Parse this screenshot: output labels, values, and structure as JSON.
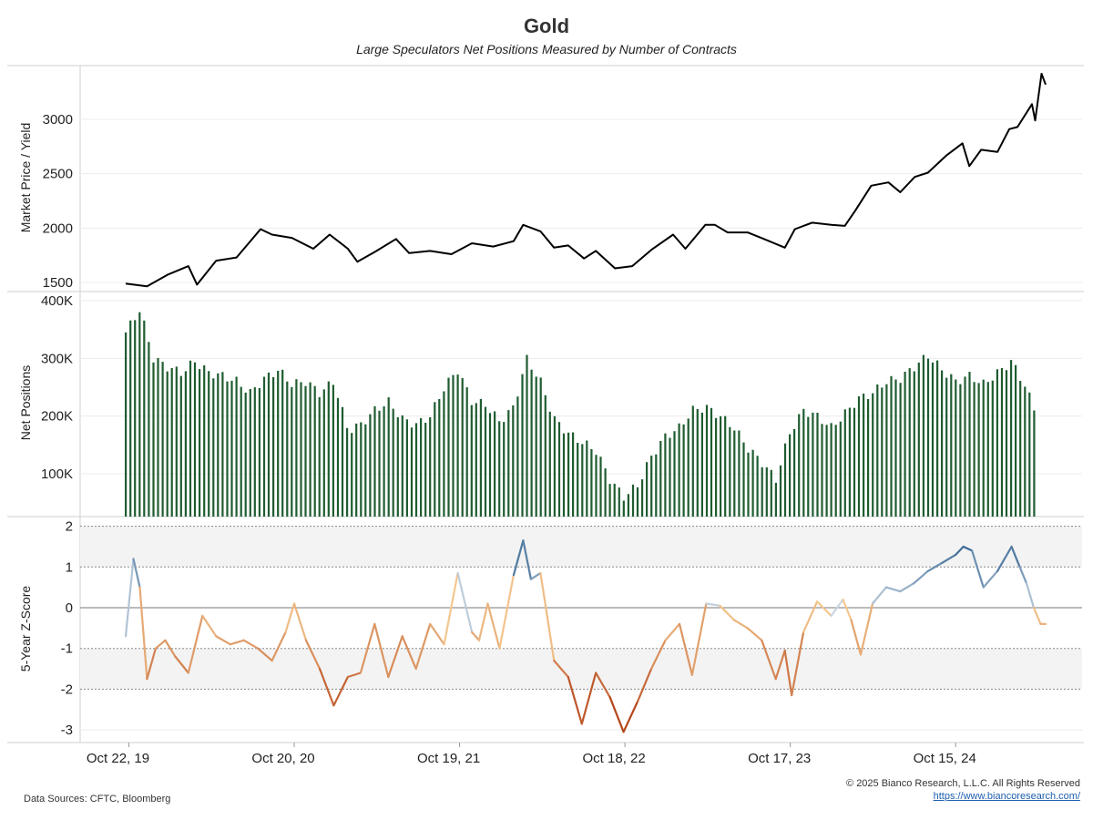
{
  "header": {
    "title": "Gold",
    "subtitle": "Large Speculators Net Positions Measured by Number of Contracts"
  },
  "footer": {
    "sources": "Data Sources: CFTC, Bloomberg",
    "copyright": "© 2025 Bianco Research, L.L.C. All Rights Reserved",
    "website": "https://www.biancoresearch.com/"
  },
  "colors": {
    "price_line": "#000000",
    "bars": "#1f5c30",
    "z_positive": "#2e5f8f",
    "z_neutral": "#f5c890",
    "z_negative": "#b5461b",
    "shade_band": "#f3f3f3"
  },
  "chart_data": [
    {
      "type": "line",
      "panel": "price",
      "ylabel": "Market Price / Yield",
      "ylim": [
        1500,
        3400
      ],
      "yticks": [
        "1500",
        "2000",
        "2500",
        "3000"
      ],
      "x_range": [
        "2019-10-15",
        "2025-04-15"
      ],
      "xticks": [
        "Oct 22, 19",
        "Oct 20, 20",
        "Oct 19, 21",
        "Oct 18, 22",
        "Oct 17, 23",
        "Oct 15, 24"
      ],
      "x": [
        "2019-10-15",
        "2019-12-01",
        "2020-01-15",
        "2020-03-01",
        "2020-03-20",
        "2020-05-01",
        "2020-06-15",
        "2020-08-07",
        "2020-09-01",
        "2020-10-15",
        "2020-12-01",
        "2021-01-06",
        "2021-02-15",
        "2021-03-08",
        "2021-04-15",
        "2021-06-01",
        "2021-06-30",
        "2021-08-15",
        "2021-10-01",
        "2021-11-15",
        "2022-01-01",
        "2022-02-15",
        "2022-03-08",
        "2022-04-15",
        "2022-05-15",
        "2022-06-15",
        "2022-07-20",
        "2022-08-15",
        "2022-09-26",
        "2022-11-03",
        "2022-12-15",
        "2023-02-01",
        "2023-02-28",
        "2023-04-13",
        "2023-05-04",
        "2023-06-01",
        "2023-07-15",
        "2023-08-20",
        "2023-10-05",
        "2023-10-27",
        "2023-12-04",
        "2024-01-15",
        "2024-02-14",
        "2024-03-08",
        "2024-04-12",
        "2024-05-20",
        "2024-06-15",
        "2024-07-17",
        "2024-08-15",
        "2024-09-25",
        "2024-10-30",
        "2024-11-14",
        "2024-12-10",
        "2025-01-15",
        "2025-02-10",
        "2025-02-28",
        "2025-04-01",
        "2025-04-08",
        "2025-04-22",
        "2025-05-01"
      ],
      "values": [
        1490,
        1465,
        1570,
        1650,
        1480,
        1700,
        1730,
        1990,
        1940,
        1910,
        1810,
        1940,
        1810,
        1690,
        1780,
        1900,
        1770,
        1790,
        1760,
        1860,
        1830,
        1880,
        2030,
        1970,
        1820,
        1840,
        1720,
        1790,
        1630,
        1650,
        1800,
        1940,
        1810,
        2030,
        2030,
        1960,
        1960,
        1900,
        1820,
        1990,
        2050,
        2030,
        2020,
        2160,
        2390,
        2420,
        2330,
        2470,
        2510,
        2670,
        2780,
        2570,
        2720,
        2700,
        2910,
        2930,
        3140,
        2990,
        3420,
        3320
      ]
    },
    {
      "type": "bar",
      "panel": "net_positions",
      "ylabel": "Net Positions",
      "ylim": [
        30000,
        410000
      ],
      "yticks": [
        "100K",
        "200K",
        "300K",
        "400K"
      ],
      "x": [
        "2019-10-15",
        "2019-11-15",
        "2019-12-15",
        "2020-01-15",
        "2020-02-15",
        "2020-03-15",
        "2020-04-15",
        "2020-05-15",
        "2020-06-15",
        "2020-07-15",
        "2020-08-15",
        "2020-09-15",
        "2020-10-15",
        "2020-11-15",
        "2020-12-15",
        "2021-01-15",
        "2021-02-15",
        "2021-03-15",
        "2021-04-15",
        "2021-05-15",
        "2021-06-15",
        "2021-07-15",
        "2021-08-15",
        "2021-09-15",
        "2021-10-15",
        "2021-11-15",
        "2021-12-15",
        "2022-01-15",
        "2022-02-15",
        "2022-03-15",
        "2022-04-15",
        "2022-05-15",
        "2022-06-15",
        "2022-07-15",
        "2022-08-15",
        "2022-09-15",
        "2022-10-15",
        "2022-11-15",
        "2022-12-15",
        "2023-01-15",
        "2023-02-15",
        "2023-03-15",
        "2023-04-15",
        "2023-05-15",
        "2023-06-15",
        "2023-07-15",
        "2023-08-15",
        "2023-09-15",
        "2023-10-15",
        "2023-11-15",
        "2023-12-15",
        "2024-01-15",
        "2024-02-15",
        "2024-03-15",
        "2024-04-15",
        "2024-05-15",
        "2024-06-15",
        "2024-07-15",
        "2024-08-15",
        "2024-09-15",
        "2024-10-15",
        "2024-11-15",
        "2024-12-15",
        "2025-01-15",
        "2025-02-15",
        "2025-03-15",
        "2025-04-15"
      ],
      "values": [
        345000,
        385000,
        300000,
        285000,
        275000,
        295000,
        275000,
        270000,
        260000,
        240000,
        265000,
        280000,
        255000,
        260000,
        240000,
        260000,
        175000,
        185000,
        210000,
        225000,
        195000,
        185000,
        200000,
        250000,
        280000,
        225000,
        220000,
        190000,
        215000,
        300000,
        260000,
        195000,
        170000,
        155000,
        140000,
        90000,
        60000,
        80000,
        130000,
        165000,
        180000,
        210000,
        215000,
        200000,
        180000,
        145000,
        120000,
        90000,
        170000,
        210000,
        200000,
        180000,
        205000,
        230000,
        240000,
        260000,
        265000,
        285000,
        305000,
        280000,
        260000,
        270000,
        255000,
        275000,
        295000,
        255000,
        195000
      ]
    },
    {
      "type": "line",
      "panel": "z_score",
      "ylabel": "5-Year Z-Score",
      "ylim": [
        -3.3,
        2.2
      ],
      "yticks": [
        "-3",
        "-2",
        "-1",
        "0",
        "1",
        "2"
      ],
      "shaded_bands": [
        [
          1,
          2
        ],
        [
          -2,
          -1
        ]
      ],
      "x": [
        "2019-10-15",
        "2019-11-01",
        "2019-11-15",
        "2019-12-01",
        "2019-12-20",
        "2020-01-10",
        "2020-02-01",
        "2020-03-01",
        "2020-04-01",
        "2020-05-01",
        "2020-06-01",
        "2020-07-01",
        "2020-08-01",
        "2020-09-01",
        "2020-10-01",
        "2020-10-20",
        "2020-11-15",
        "2020-12-15",
        "2021-01-15",
        "2021-02-15",
        "2021-03-15",
        "2021-04-15",
        "2021-05-15",
        "2021-06-15",
        "2021-07-15",
        "2021-08-15",
        "2021-09-15",
        "2021-10-15",
        "2021-11-15",
        "2021-12-01",
        "2021-12-20",
        "2022-01-15",
        "2022-02-15",
        "2022-03-08",
        "2022-03-25",
        "2022-04-15",
        "2022-05-15",
        "2022-06-15",
        "2022-07-15",
        "2022-08-15",
        "2022-09-15",
        "2022-10-15",
        "2022-11-15",
        "2022-12-15",
        "2023-01-15",
        "2023-02-15",
        "2023-03-15",
        "2023-04-15",
        "2023-05-15",
        "2023-06-15",
        "2023-07-15",
        "2023-08-15",
        "2023-09-15",
        "2023-10-05",
        "2023-10-20",
        "2023-11-15",
        "2023-12-15",
        "2024-01-15",
        "2024-02-10",
        "2024-02-28",
        "2024-03-20",
        "2024-04-15",
        "2024-05-15",
        "2024-06-15",
        "2024-07-15",
        "2024-08-15",
        "2024-09-15",
        "2024-10-15",
        "2024-11-01",
        "2024-11-20",
        "2024-12-15",
        "2025-01-15",
        "2025-02-15",
        "2025-03-05",
        "2025-03-20",
        "2025-04-05",
        "2025-04-20",
        "2025-05-01"
      ],
      "values": [
        -0.7,
        1.2,
        0.5,
        -1.75,
        -1.0,
        -0.8,
        -1.2,
        -1.6,
        -0.2,
        -0.7,
        -0.9,
        -0.8,
        -1.0,
        -1.3,
        -0.6,
        0.1,
        -0.8,
        -1.5,
        -2.4,
        -1.7,
        -1.6,
        -0.4,
        -1.7,
        -0.7,
        -1.5,
        -0.4,
        -0.9,
        0.85,
        -0.6,
        -0.8,
        0.1,
        -1.0,
        0.8,
        1.65,
        0.7,
        0.85,
        -1.3,
        -1.7,
        -2.85,
        -1.6,
        -2.2,
        -3.05,
        -2.3,
        -1.5,
        -0.8,
        -0.4,
        -1.65,
        0.1,
        0.05,
        -0.3,
        -0.5,
        -0.8,
        -1.75,
        -1.05,
        -2.15,
        -0.6,
        0.15,
        -0.2,
        0.2,
        -0.3,
        -1.15,
        0.1,
        0.5,
        0.4,
        0.6,
        0.9,
        1.1,
        1.3,
        1.5,
        1.4,
        0.5,
        0.9,
        1.5,
        1.0,
        0.6,
        0.0,
        -0.4,
        -0.4
      ]
    }
  ]
}
